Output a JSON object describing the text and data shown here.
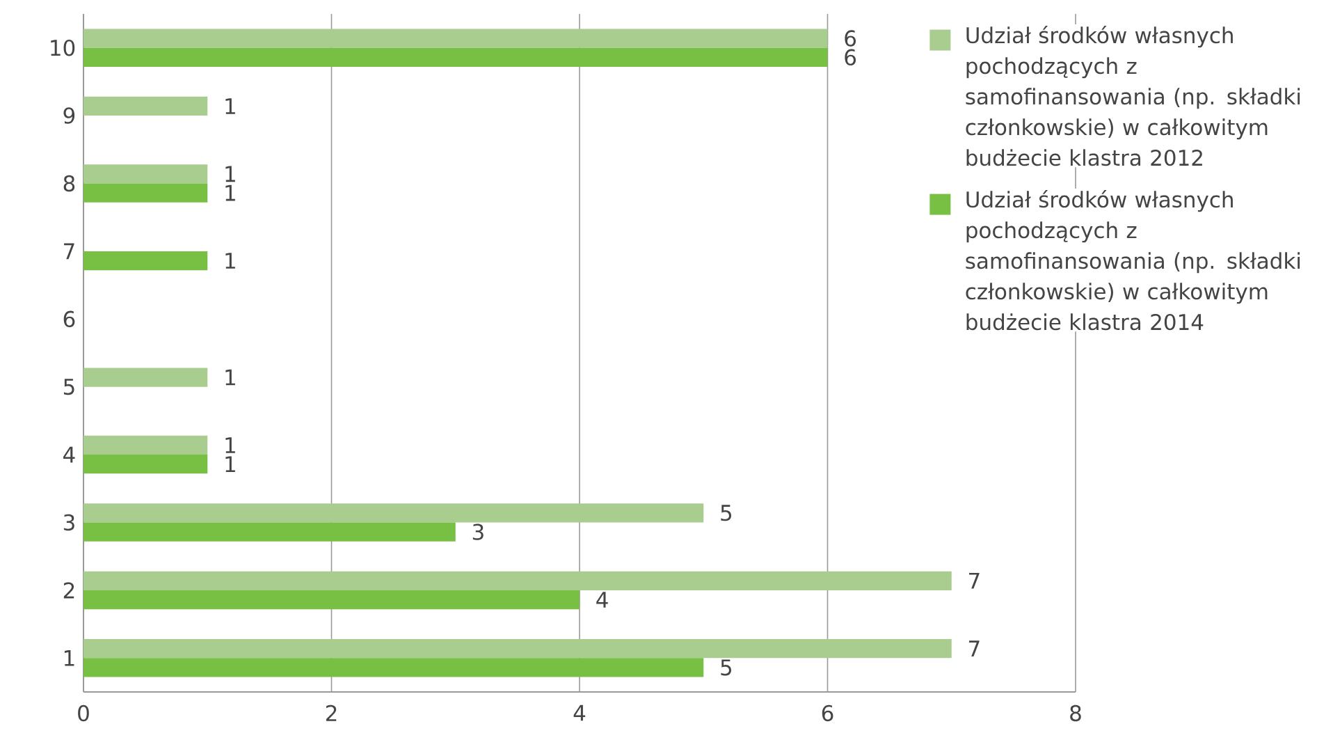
{
  "chart_data": {
    "type": "bar",
    "orientation": "horizontal",
    "categories": [
      "10",
      "9",
      "8",
      "7",
      "6",
      "5",
      "4",
      "3",
      "2",
      "1"
    ],
    "series": [
      {
        "name": "Udział środków własnych pochodzących z samofinansowania (np. składki członkowskie) w całkowitym budżecie klastra 2012",
        "color": "#a9cd8f",
        "values": [
          6,
          1,
          1,
          null,
          null,
          1,
          1,
          5,
          7,
          7
        ]
      },
      {
        "name": "Udział środków własnych pochodzących z samofinansowania (np. składki członkowskie) w całkowitym budżecie klastra 2014",
        "color": "#77c043",
        "values": [
          6,
          null,
          1,
          1,
          null,
          null,
          1,
          3,
          4,
          5
        ]
      }
    ],
    "xlim": [
      0,
      8
    ],
    "xticks": [
      0,
      2,
      4,
      6,
      8
    ],
    "grid": "x",
    "legend": "top right",
    "data_labels": true
  }
}
